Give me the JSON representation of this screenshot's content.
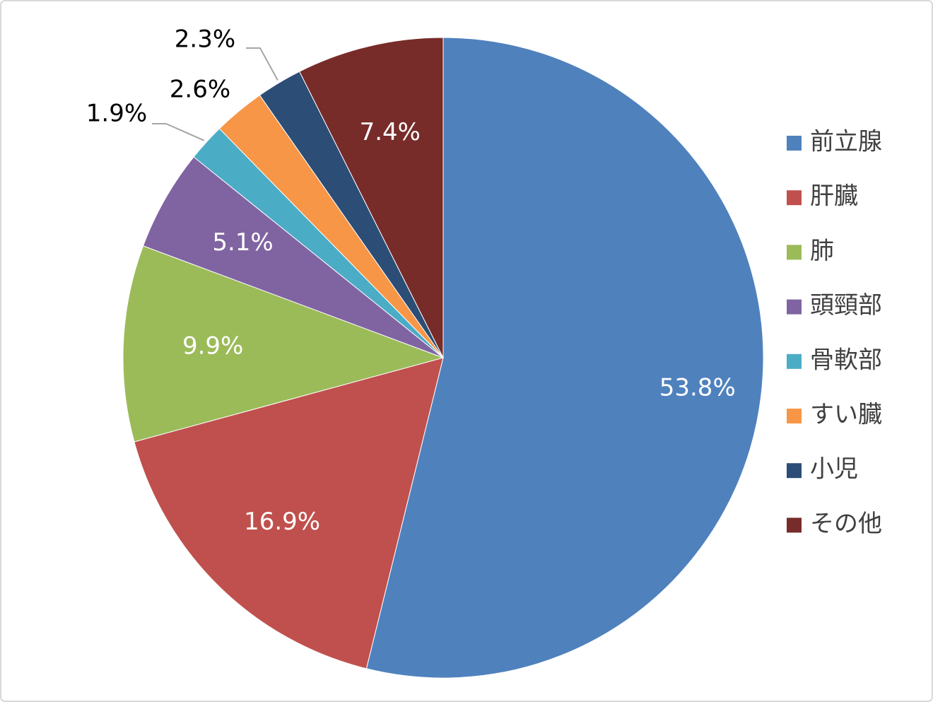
{
  "chart_data": {
    "type": "pie",
    "categories": [
      "前立腺",
      "肝臓",
      "肺",
      "頭頸部",
      "骨軟部",
      "すい臓",
      "小児",
      "その他"
    ],
    "values": [
      53.8,
      16.9,
      9.9,
      5.1,
      1.9,
      2.6,
      2.3,
      7.4
    ],
    "value_labels": [
      "53.8%",
      "16.9%",
      "9.9%",
      "5.1%",
      "1.9%",
      "2.6%",
      "2.3%",
      "7.4%"
    ],
    "colors": [
      "#4f81bd",
      "#c0504d",
      "#9bbb59",
      "#8064a2",
      "#4bacc6",
      "#f79646",
      "#2c4d75",
      "#772c2a"
    ],
    "legend": "right"
  }
}
